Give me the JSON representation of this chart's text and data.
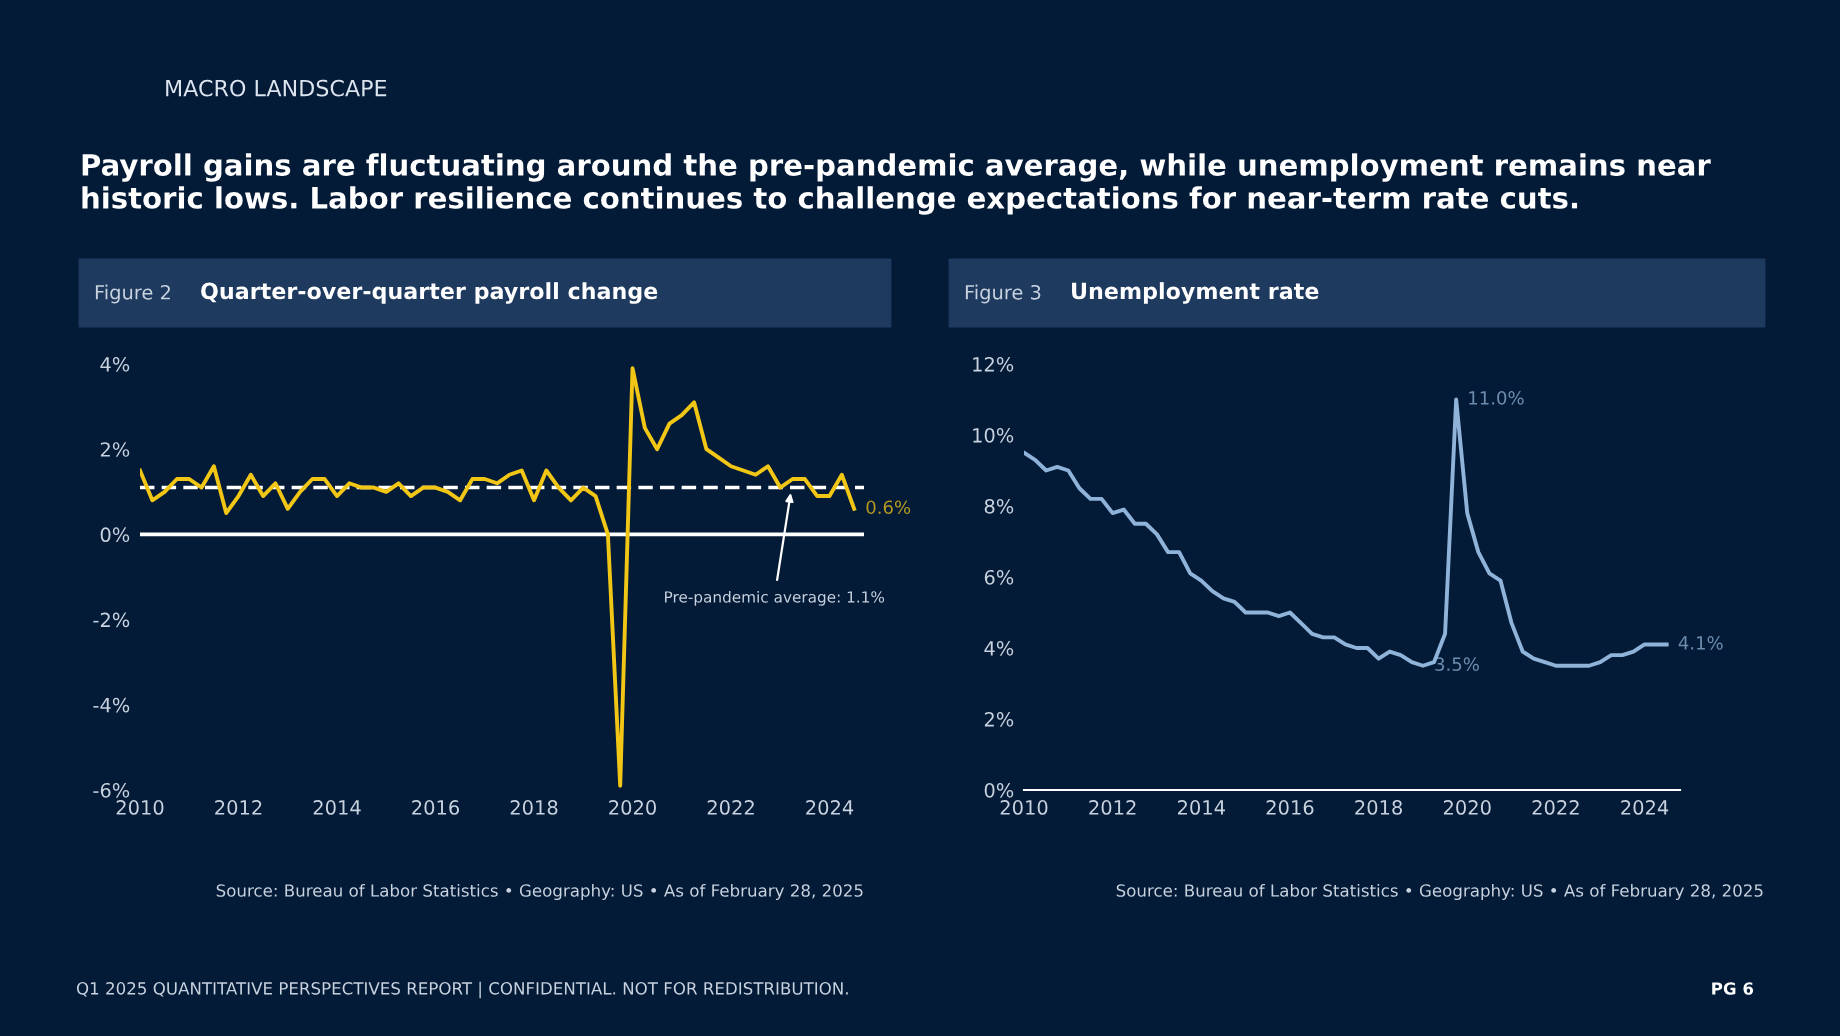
{
  "chart_data": [
    {
      "type": "line",
      "title": "Quarter-over-quarter payroll change",
      "annotations": [
        "Figure 2",
        "Source: Bureau of Labor Statistics • Geography: US • As of February 28, 2025",
        "MACRO LANDSCAPE",
        "Payroll gains are fluctuating around the pre-pandemic average, while unemployment remains near historic lows. Labor resilience continues to challenge expectations for near-term rate cuts.",
        "Q1 2025 QUANTITATIVE PERSPECTIVES REPORT | CONFIDENTIAL. NOT FOR REDISTRIBUTION.",
        "PG 6",
        {
          "text": "0.6%",
          "x": 2024.5,
          "y": 0.6
        }
      ],
      "x": [
        2010.0,
        2010.25,
        2010.5,
        2010.75,
        2011.0,
        2011.25,
        2011.5,
        2011.75,
        2012.0,
        2012.25,
        2012.5,
        2012.75,
        2013.0,
        2013.25,
        2013.5,
        2013.75,
        2014.0,
        2014.25,
        2014.5,
        2014.75,
        2015.0,
        2015.25,
        2015.5,
        2015.75,
        2016.0,
        2016.25,
        2016.5,
        2016.75,
        2017.0,
        2017.25,
        2017.5,
        2017.75,
        2018.0,
        2018.25,
        2018.5,
        2018.75,
        2019.0,
        2019.25,
        2019.5,
        2019.75,
        2020.0,
        2020.25,
        2020.5,
        2020.75,
        2021.0,
        2021.25,
        2021.5,
        2021.75,
        2022.0,
        2022.25,
        2022.5,
        2022.75,
        2023.0,
        2023.25,
        2023.5,
        2023.75,
        2024.0,
        2024.25,
        2024.5
      ],
      "series": [
        {
          "color": "#f2c615",
          "values": [
            1.5,
            0.8,
            1.0,
            1.3,
            1.3,
            1.1,
            1.6,
            0.5,
            0.9,
            1.4,
            0.9,
            1.2,
            0.6,
            1.0,
            1.3,
            1.3,
            0.9,
            1.2,
            1.1,
            1.1,
            1.0,
            1.2,
            0.9,
            1.1,
            1.1,
            1.0,
            0.8,
            1.3,
            1.3,
            1.2,
            1.4,
            1.5,
            0.8,
            1.5,
            1.1,
            0.8,
            1.1,
            0.9,
            0.0,
            -5.9,
            3.9,
            2.5,
            2.0,
            2.6,
            2.8,
            3.1,
            2.0,
            1.8,
            1.6,
            1.5,
            1.4,
            1.6,
            1.1,
            1.3,
            1.3,
            0.9,
            0.9,
            1.4,
            0.6
          ]
        }
      ],
      "xlim": [
        2010,
        2024.7
      ],
      "xticks": [
        2010,
        2012,
        2014,
        2016,
        2018,
        2020,
        2022,
        2024
      ],
      "ylim": [
        -6,
        4
      ],
      "yticks": [
        {
          "value": -6,
          "label": "-6%"
        },
        {
          "value": -4,
          "label": "-4%"
        },
        {
          "value": -2,
          "label": "-2%"
        },
        {
          "value": 0,
          "label": "0%"
        },
        {
          "value": 2,
          "label": "2%"
        },
        {
          "value": 4,
          "label": "4%"
        }
      ],
      "ref_lines": [
        {
          "axis": "y",
          "value": 1.1,
          "label": "Pre-pandemic average: 1.1%",
          "color": "#ffffff",
          "line_style": "dashed"
        },
        {
          "axis": "y",
          "value": 0,
          "color": "#ffffff",
          "line_style": "solid"
        }
      ]
    },
    {
      "type": "line",
      "title": "Unemployment rate",
      "annotations": [
        "Figure 3",
        "Source: Bureau of Labor Statistics • Geography: US • As of February 28, 2025",
        {
          "text": "11.0%",
          "x": 2019.75,
          "y": 11.0
        },
        {
          "text": "3.5%",
          "x": 2019.0,
          "y": 3.5
        },
        {
          "text": "4.1%",
          "x": 2024.5,
          "y": 4.1
        }
      ],
      "x": [
        2010.0,
        2010.25,
        2010.5,
        2010.75,
        2011.0,
        2011.25,
        2011.5,
        2011.75,
        2012.0,
        2012.25,
        2012.5,
        2012.75,
        2013.0,
        2013.25,
        2013.5,
        2013.75,
        2014.0,
        2014.25,
        2014.5,
        2014.75,
        2015.0,
        2015.25,
        2015.5,
        2015.75,
        2016.0,
        2016.25,
        2016.5,
        2016.75,
        2017.0,
        2017.25,
        2017.5,
        2017.75,
        2018.0,
        2018.25,
        2018.5,
        2018.75,
        2019.0,
        2019.25,
        2019.5,
        2019.75,
        2020.0,
        2020.25,
        2020.5,
        2020.75,
        2021.0,
        2021.25,
        2021.5,
        2021.75,
        2022.0,
        2022.25,
        2022.5,
        2022.75,
        2023.0,
        2023.25,
        2023.5,
        2023.75,
        2024.0,
        2024.25,
        2024.5
      ],
      "series": [
        {
          "color": "#8fb3d9",
          "values": [
            9.5,
            9.3,
            9.0,
            9.1,
            9.0,
            8.5,
            8.2,
            8.2,
            7.8,
            7.9,
            7.5,
            7.5,
            7.2,
            6.7,
            6.7,
            6.1,
            5.9,
            5.6,
            5.4,
            5.3,
            5.0,
            5.0,
            5.0,
            4.9,
            5.0,
            4.7,
            4.4,
            4.3,
            4.3,
            4.1,
            4.0,
            4.0,
            3.7,
            3.9,
            3.8,
            3.6,
            3.5,
            3.6,
            4.4,
            11.0,
            7.8,
            6.7,
            6.1,
            5.9,
            4.7,
            3.9,
            3.7,
            3.6,
            3.5,
            3.5,
            3.5,
            3.5,
            3.6,
            3.8,
            3.8,
            3.9,
            4.1,
            4.1,
            4.1
          ]
        }
      ],
      "xlim": [
        2010,
        2024.8
      ],
      "xticks": [
        2010,
        2012,
        2014,
        2016,
        2018,
        2020,
        2022,
        2024
      ],
      "ylim": [
        0,
        12
      ],
      "yticks": [
        {
          "value": 0,
          "label": "0%"
        },
        {
          "value": 2,
          "label": "2%"
        },
        {
          "value": 4,
          "label": "4%"
        },
        {
          "value": 6,
          "label": "6%"
        },
        {
          "value": 8,
          "label": "8%"
        },
        {
          "value": 10,
          "label": "10%"
        },
        {
          "value": 12,
          "label": "12%"
        }
      ]
    }
  ]
}
